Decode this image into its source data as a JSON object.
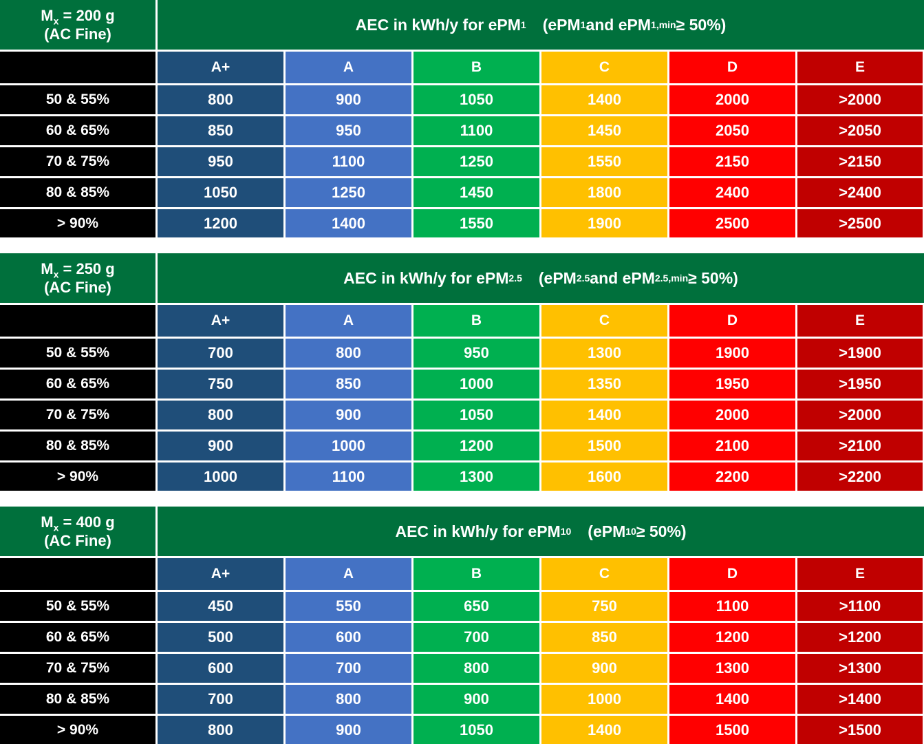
{
  "colors": {
    "header_green": "#00703c",
    "grade_colors": [
      "#1f4e79",
      "#4472c4",
      "#00b050",
      "#ffc000",
      "#ff0000",
      "#c00000"
    ]
  },
  "grades": [
    "A+",
    "A",
    "B",
    "C",
    "D",
    "E"
  ],
  "row_labels": [
    "50 & 55%",
    "60 & 65%",
    "70 & 75%",
    "80 & 85%",
    "> 90%"
  ],
  "tables": [
    {
      "mx_prefix": "M",
      "mx_sub": "x",
      "mx_value": " = 200 g",
      "mx_note": "(AC Fine)",
      "title_main": "AEC in kWh/y for ePM",
      "title_main_sub": "1",
      "title_paren_a": "(ePM",
      "title_paren_a_sub": "1",
      "title_paren_b": " and ePM",
      "title_paren_b_sub": "1,min",
      "title_paren_c": " ≥ 50%)",
      "rows": [
        [
          "800",
          "900",
          "1050",
          "1400",
          "2000",
          ">2000"
        ],
        [
          "850",
          "950",
          "1100",
          "1450",
          "2050",
          ">2050"
        ],
        [
          "950",
          "1100",
          "1250",
          "1550",
          "2150",
          ">2150"
        ],
        [
          "1050",
          "1250",
          "1450",
          "1800",
          "2400",
          ">2400"
        ],
        [
          "1200",
          "1400",
          "1550",
          "1900",
          "2500",
          ">2500"
        ]
      ]
    },
    {
      "mx_prefix": "M",
      "mx_sub": "x",
      "mx_value": " = 250 g",
      "mx_note": "(AC Fine)",
      "title_main": "AEC in kWh/y for ePM",
      "title_main_sub": "2.5",
      "title_paren_a": "(ePM",
      "title_paren_a_sub": "2.5",
      "title_paren_b": " and ePM",
      "title_paren_b_sub": "2.5,min",
      "title_paren_c": " ≥ 50%)",
      "rows": [
        [
          "700",
          "800",
          "950",
          "1300",
          "1900",
          ">1900"
        ],
        [
          "750",
          "850",
          "1000",
          "1350",
          "1950",
          ">1950"
        ],
        [
          "800",
          "900",
          "1050",
          "1400",
          "2000",
          ">2000"
        ],
        [
          "900",
          "1000",
          "1200",
          "1500",
          "2100",
          ">2100"
        ],
        [
          "1000",
          "1100",
          "1300",
          "1600",
          "2200",
          ">2200"
        ]
      ]
    },
    {
      "mx_prefix": "M",
      "mx_sub": "x",
      "mx_value": " = 400 g",
      "mx_note": "(AC Fine)",
      "title_main": "AEC in kWh/y for ePM",
      "title_main_sub": "10",
      "title_paren_a": "(ePM",
      "title_paren_a_sub": "10",
      "title_paren_b": "",
      "title_paren_b_sub": "",
      "title_paren_c": " ≥ 50%)",
      "rows": [
        [
          "450",
          "550",
          "650",
          "750",
          "1100",
          ">1100"
        ],
        [
          "500",
          "600",
          "700",
          "850",
          "1200",
          ">1200"
        ],
        [
          "600",
          "700",
          "800",
          "900",
          "1300",
          ">1300"
        ],
        [
          "700",
          "800",
          "900",
          "1000",
          "1400",
          ">1400"
        ],
        [
          "800",
          "900",
          "1050",
          "1400",
          "1500",
          ">1500"
        ]
      ]
    }
  ]
}
